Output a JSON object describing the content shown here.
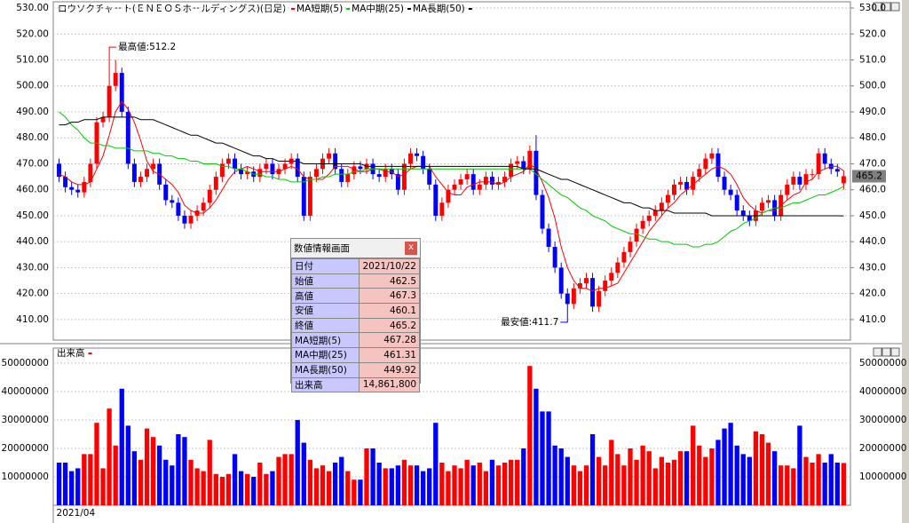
{
  "chart_data": [
    {
      "type": "candlestick",
      "title": "ロウソクチャート(ＥＮＥＯＳホールディングス)(日足)",
      "color_up": "#ff0000",
      "color_down": "#0000ff",
      "open": [
        470,
        465,
        461,
        460,
        459,
        463,
        470,
        486,
        488,
        500,
        505,
        490,
        470,
        463,
        465,
        468,
        470,
        462,
        456,
        455,
        450,
        447,
        450,
        452,
        455,
        460,
        465,
        470,
        472,
        468,
        466,
        467,
        465,
        468,
        470,
        466,
        468,
        470,
        472,
        465,
        450,
        465,
        468,
        472,
        474,
        468,
        463,
        466,
        469,
        468,
        470,
        466,
        465,
        468,
        466,
        460,
        470,
        474,
        473,
        468,
        462,
        450,
        455,
        460,
        462,
        464,
        466,
        460,
        462,
        465,
        462,
        463,
        465,
        470,
        471,
        468,
        475,
        458,
        445,
        438,
        430,
        420,
        416,
        422,
        424,
        426,
        415,
        421,
        425,
        428,
        432,
        436,
        440,
        445,
        448,
        450,
        452,
        455,
        458,
        462,
        463,
        460,
        465,
        468,
        472,
        474,
        465,
        460,
        458,
        452,
        450,
        448,
        452,
        455,
        456,
        450,
        458,
        462,
        465,
        462,
        466,
        466,
        474,
        470,
        468,
        462.5
      ],
      "high": [
        472,
        467,
        463,
        462,
        465,
        472,
        488,
        490,
        512.2,
        510,
        507,
        492,
        472,
        467,
        470,
        472,
        472,
        464,
        458,
        457,
        452,
        452,
        454,
        457,
        462,
        467,
        472,
        474,
        474,
        470,
        469,
        469,
        470,
        472,
        472,
        470,
        472,
        474,
        474,
        467,
        467,
        470,
        474,
        476,
        476,
        470,
        468,
        471,
        471,
        472,
        472,
        468,
        470,
        470,
        468,
        472,
        476,
        476,
        475,
        470,
        464,
        457,
        462,
        464,
        466,
        468,
        468,
        464,
        467,
        467,
        465,
        467,
        472,
        473,
        473,
        477,
        481,
        460,
        447,
        440,
        432,
        422,
        424,
        426,
        428,
        428,
        423,
        427,
        430,
        434,
        438,
        442,
        447,
        450,
        452,
        454,
        457,
        460,
        464,
        465,
        465,
        467,
        470,
        474,
        476,
        476,
        467,
        462,
        460,
        454,
        452,
        454,
        457,
        458,
        458,
        460,
        464,
        467,
        467,
        468,
        468,
        476,
        476,
        472,
        470,
        467.3
      ],
      "low": [
        463,
        459,
        458,
        457,
        457,
        461,
        468,
        484,
        486,
        498,
        488,
        468,
        461,
        461,
        463,
        466,
        460,
        454,
        453,
        448,
        445,
        445,
        448,
        450,
        453,
        458,
        463,
        468,
        466,
        464,
        464,
        463,
        463,
        466,
        464,
        464,
        466,
        468,
        463,
        448,
        448,
        463,
        466,
        470,
        466,
        461,
        461,
        464,
        466,
        466,
        464,
        463,
        463,
        464,
        458,
        458,
        468,
        471,
        466,
        460,
        448,
        448,
        453,
        458,
        460,
        462,
        458,
        458,
        460,
        460,
        460,
        461,
        463,
        468,
        466,
        466,
        456,
        443,
        436,
        428,
        418,
        411.7,
        414,
        420,
        422,
        413,
        413,
        419,
        423,
        426,
        430,
        434,
        438,
        443,
        446,
        448,
        450,
        453,
        456,
        460,
        458,
        458,
        463,
        466,
        470,
        463,
        458,
        456,
        450,
        448,
        446,
        446,
        450,
        453,
        448,
        448,
        456,
        460,
        460,
        460,
        464,
        464,
        468,
        466,
        465,
        460.1
      ],
      "close": [
        465,
        461,
        460,
        459,
        463,
        470,
        486,
        488,
        500,
        505,
        490,
        470,
        463,
        465,
        468,
        470,
        462,
        456,
        455,
        450,
        447,
        450,
        452,
        455,
        460,
        465,
        470,
        472,
        468,
        466,
        467,
        465,
        468,
        470,
        466,
        468,
        470,
        472,
        465,
        450,
        465,
        468,
        472,
        474,
        468,
        463,
        466,
        469,
        468,
        470,
        466,
        465,
        468,
        466,
        460,
        470,
        474,
        473,
        468,
        462,
        450,
        455,
        460,
        462,
        464,
        466,
        460,
        462,
        465,
        462,
        463,
        465,
        470,
        471,
        468,
        475,
        458,
        445,
        438,
        430,
        420,
        416,
        422,
        424,
        426,
        415,
        421,
        425,
        428,
        432,
        436,
        440,
        445,
        448,
        450,
        452,
        455,
        458,
        462,
        463,
        460,
        465,
        468,
        472,
        474,
        465,
        460,
        458,
        452,
        450,
        448,
        452,
        455,
        456,
        450,
        458,
        462,
        465,
        462,
        466,
        466,
        474,
        470,
        468,
        467,
        465.2
      ],
      "series": [
        {
          "name": "MA短期(5)",
          "color": "#ff0000",
          "values": [
            466,
            465,
            463,
            462,
            462,
            463,
            468,
            473,
            481,
            490,
            494,
            491,
            486,
            479,
            471,
            467,
            466,
            464,
            462,
            459,
            454,
            452,
            451,
            451,
            453,
            456,
            460,
            464,
            467,
            468,
            469,
            468,
            467,
            467,
            467,
            467,
            468,
            469,
            468,
            465,
            464,
            464,
            464,
            466,
            469,
            469,
            469,
            468,
            467,
            467,
            468,
            468,
            467,
            467,
            465,
            466,
            468,
            469,
            469,
            469,
            465,
            462,
            459,
            458,
            458,
            461,
            462,
            463,
            463,
            463,
            462,
            463,
            465,
            466,
            467,
            470,
            468,
            463,
            457,
            449,
            438,
            430,
            425,
            422,
            422,
            421,
            422,
            422,
            423,
            424,
            428,
            432,
            436,
            440,
            444,
            447,
            450,
            453,
            455,
            458,
            460,
            462,
            464,
            466,
            468,
            469,
            468,
            466,
            462,
            457,
            454,
            452,
            451,
            452,
            452,
            454,
            456,
            458,
            459,
            463,
            464,
            467,
            468,
            469,
            469,
            467.28
          ]
        },
        {
          "name": "MA中期(25)",
          "color": "#00cc00",
          "values": [
            490,
            488,
            485,
            483,
            480,
            478,
            478,
            477,
            477,
            476,
            476,
            476,
            475,
            475,
            475,
            474,
            474,
            473,
            473,
            472,
            472,
            471,
            471,
            470,
            470,
            470,
            469,
            469,
            468,
            468,
            467,
            466,
            466,
            465,
            465,
            464,
            464,
            463,
            463,
            463,
            464,
            464,
            465,
            465,
            466,
            466,
            466,
            467,
            467,
            468,
            468,
            468,
            468,
            468,
            468,
            468,
            468,
            468,
            468,
            468,
            468,
            468,
            468,
            468,
            468,
            468,
            468,
            468,
            468,
            468,
            468,
            468,
            468,
            468,
            468,
            468,
            466,
            464,
            462,
            460,
            458,
            457,
            455,
            453,
            452,
            450,
            449,
            448,
            446,
            445,
            444,
            443,
            443,
            442,
            441,
            441,
            440,
            440,
            439,
            439,
            439,
            438,
            438,
            439,
            439,
            440,
            442,
            444,
            445,
            447,
            448,
            449,
            451,
            452,
            453,
            453,
            454,
            455,
            455,
            456,
            457,
            458,
            458,
            459,
            460,
            461.31
          ]
        },
        {
          "name": "MA長期(50)",
          "color": "#000000",
          "values": [
            485,
            485,
            486,
            486,
            487,
            487,
            487,
            488,
            488,
            488,
            488,
            488,
            488,
            487,
            487,
            487,
            486,
            485,
            484,
            483,
            482,
            481,
            481,
            480,
            479,
            478,
            478,
            477,
            476,
            475,
            474,
            473,
            473,
            472,
            472,
            471,
            471,
            471,
            471,
            470,
            470,
            470,
            470,
            470,
            470,
            470,
            470,
            470,
            470,
            469,
            469,
            469,
            469,
            469,
            469,
            469,
            469,
            469,
            469,
            469,
            469,
            469,
            469,
            469,
            469,
            469,
            469,
            469,
            469,
            469,
            469,
            469,
            469,
            469,
            468,
            468,
            468,
            467,
            466,
            465,
            464,
            464,
            463,
            462,
            461,
            460,
            459,
            458,
            457,
            456,
            455,
            455,
            454,
            453,
            453,
            452,
            452,
            452,
            451,
            451,
            451,
            451,
            451,
            451,
            450,
            450,
            450,
            450,
            450,
            450,
            450,
            450,
            450,
            450,
            450,
            450,
            450,
            450,
            450,
            450,
            450,
            450,
            450,
            450,
            450,
            449.92
          ]
        }
      ],
      "ylim": [
        402.1,
        532.4
      ],
      "yticks": [
        {
          "value": 410,
          "label": "410.00"
        },
        {
          "value": 420,
          "label": "420.00"
        },
        {
          "value": 430,
          "label": "430.00"
        },
        {
          "value": 440,
          "label": "440.00"
        },
        {
          "value": 450,
          "label": "450.00"
        },
        {
          "value": 460,
          "label": "460.00"
        },
        {
          "value": 470,
          "label": "470.00"
        },
        {
          "value": 480,
          "label": "480.00"
        },
        {
          "value": 490,
          "label": "490.00"
        },
        {
          "value": 500,
          "label": "500.00"
        },
        {
          "value": 510,
          "label": "510.00"
        },
        {
          "value": 520,
          "label": "520.00"
        },
        {
          "value": 530,
          "label": "530.00"
        }
      ],
      "y2lim": [
        402.1,
        532.4
      ],
      "y2ticks": [
        {
          "value": 410,
          "label": "410.0"
        },
        {
          "value": 420,
          "label": "420.0"
        },
        {
          "value": 430,
          "label": "430.0"
        },
        {
          "value": 440,
          "label": "440.0"
        },
        {
          "value": 450,
          "label": "450.0"
        },
        {
          "value": 460,
          "label": "460.0"
        },
        {
          "value": 470,
          "label": "470.0"
        },
        {
          "value": 480,
          "label": "480.0"
        },
        {
          "value": 490,
          "label": "490.0"
        },
        {
          "value": 500,
          "label": "500.0"
        },
        {
          "value": 510,
          "label": "510.0"
        },
        {
          "value": 520,
          "label": "520.0"
        },
        {
          "value": 530,
          "label": "530.0"
        }
      ],
      "grid": true,
      "annotations": [
        {
          "text": "最高値:512.2",
          "index": 8,
          "value": 512.2,
          "side": "above"
        },
        {
          "text": "最安値:411.7",
          "index": 81,
          "value": 411.7,
          "side": "below"
        }
      ]
    },
    {
      "type": "bar",
      "title": "出来高",
      "color": "#ff0000",
      "values": [
        15000000,
        15000000,
        12000000,
        13000000,
        18000000,
        18000000,
        29000000,
        13000000,
        34000000,
        21000000,
        41000000,
        28000000,
        19000000,
        16000000,
        27000000,
        24000000,
        21000000,
        16000000,
        14000000,
        25000000,
        24000000,
        16000000,
        13000000,
        12000000,
        23000000,
        11000000,
        10000000,
        11000000,
        18000000,
        12000000,
        11000000,
        10000000,
        15000000,
        11000000,
        12000000,
        17000000,
        18000000,
        18000000,
        30000000,
        22000000,
        16000000,
        13000000,
        14000000,
        12000000,
        15000000,
        17000000,
        12000000,
        9000000,
        9000000,
        20000000,
        20000000,
        15000000,
        13000000,
        13000000,
        14000000,
        16000000,
        14000000,
        14000000,
        12000000,
        13000000,
        29000000,
        15000000,
        12000000,
        14000000,
        13000000,
        16000000,
        14000000,
        15000000,
        12000000,
        16000000,
        14000000,
        15000000,
        16000000,
        16000000,
        20000000,
        49000000,
        41000000,
        33000000,
        33000000,
        21000000,
        20000000,
        17000000,
        14000000,
        12000000,
        14000000,
        25000000,
        17000000,
        14000000,
        23000000,
        18000000,
        14000000,
        20000000,
        16000000,
        21000000,
        19000000,
        13000000,
        17000000,
        15000000,
        16000000,
        19000000,
        19000000,
        28000000,
        21000000,
        17000000,
        20000000,
        23000000,
        27000000,
        29000000,
        21000000,
        18000000,
        17000000,
        26000000,
        25000000,
        22000000,
        19000000,
        14000000,
        14000000,
        13000000,
        28000000,
        17000000,
        15000000,
        18000000,
        15000000,
        18000000,
        15000000,
        14861800
      ],
      "ylim": [
        0,
        55300000
      ],
      "yticks": [
        10000000,
        20000000,
        30000000,
        40000000,
        50000000
      ],
      "xticks": [
        {
          "value": 0,
          "label": "2021/04"
        }
      ],
      "grid": true
    }
  ],
  "info_panel": {
    "title": "数値情報画面",
    "close": "x",
    "rows": [
      [
        "日付",
        "2021/10/22"
      ],
      [
        "始値",
        "462.5"
      ],
      [
        "高値",
        "467.3"
      ],
      [
        "安値",
        "460.1"
      ],
      [
        "終値",
        "465.2"
      ],
      [
        "MA短期(5)",
        "467.28"
      ],
      [
        "MA中期(25)",
        "461.31"
      ],
      [
        "MA長期(50)",
        "449.92"
      ],
      [
        "出来高",
        "14,861,800"
      ]
    ]
  }
}
